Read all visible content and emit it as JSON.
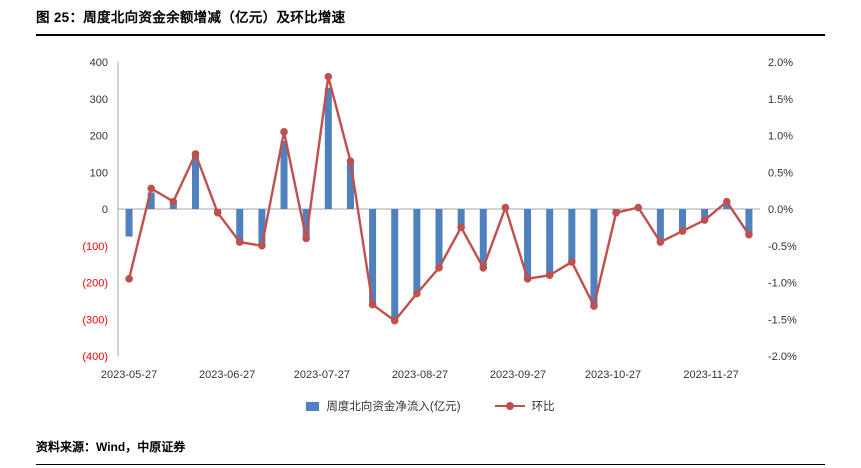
{
  "title": "图 25：周度北向资金余额增减（亿元）及环比增速",
  "footer": "资料来源：Wind，中原证券",
  "legend": {
    "bar": "周度北向资金净流入(亿元)",
    "line": "环比"
  },
  "colors": {
    "bar": "#4e81bd",
    "line": "#c0504d",
    "negative_label": "#ff0000",
    "axis_line": "#a6a6a6",
    "tick_text": "#333333"
  },
  "chart_data": {
    "type": "bar",
    "title": "周度北向资金余额增减（亿元）及环比增速",
    "grid": false,
    "legend_position": "bottom",
    "n_points": 29,
    "series": [
      {
        "name": "周度北向资金净流入(亿元)",
        "type": "bar",
        "axis": "left",
        "values": [
          -75,
          45,
          15,
          145,
          -10,
          -90,
          -95,
          185,
          -75,
          330,
          125,
          -255,
          -300,
          -230,
          -160,
          -50,
          -160,
          5,
          -190,
          -180,
          -145,
          -265,
          -10,
          5,
          -90,
          -60,
          -30,
          15,
          -70
        ]
      },
      {
        "name": "环比",
        "type": "line",
        "axis": "right",
        "values": [
          -0.95,
          0.28,
          0.1,
          0.75,
          -0.05,
          -0.45,
          -0.5,
          1.05,
          -0.4,
          1.8,
          0.65,
          -1.3,
          -1.52,
          -1.15,
          -0.8,
          -0.25,
          -0.8,
          0.02,
          -0.95,
          -0.9,
          -0.72,
          -1.32,
          -0.05,
          0.02,
          -0.45,
          -0.3,
          -0.15,
          0.1,
          -0.35
        ]
      }
    ],
    "left_axis": {
      "min": -400,
      "max": 400,
      "ticks": [
        "400",
        "300",
        "200",
        "100",
        "0",
        "(100)",
        "(200)",
        "(300)",
        "(400)"
      ]
    },
    "right_axis": {
      "min": -2,
      "max": 2,
      "ticks": [
        "2.0%",
        "1.5%",
        "1.0%",
        "0.5%",
        "0.0%",
        "-0.5%",
        "-1.0%",
        "-1.5%",
        "-2.0%"
      ]
    },
    "x_ticks": [
      {
        "label": "2023-05-27",
        "pos": 0
      },
      {
        "label": "2023-06-27",
        "pos": 4.43
      },
      {
        "label": "2023-07-27",
        "pos": 8.71
      },
      {
        "label": "2023-08-27",
        "pos": 13.14
      },
      {
        "label": "2023-09-27",
        "pos": 17.57
      },
      {
        "label": "2023-10-27",
        "pos": 21.86
      },
      {
        "label": "2023-11-27",
        "pos": 26.29
      }
    ]
  }
}
